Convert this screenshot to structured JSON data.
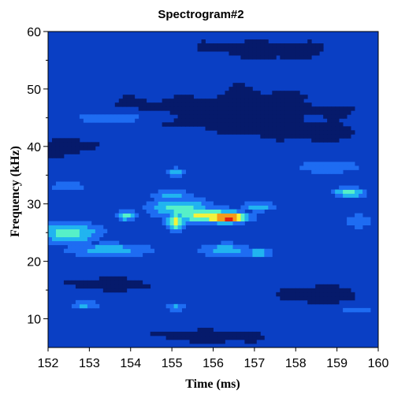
{
  "chart_data": {
    "type": "heatmap",
    "title": "Spectrogram#2",
    "xlabel": "Time (ms)",
    "ylabel": "Frequency (kHz)",
    "xlim": [
      152,
      160
    ],
    "ylim": [
      5,
      60
    ],
    "x_ticks": [
      "152",
      "153",
      "154",
      "155",
      "156",
      "157",
      "158",
      "159",
      "160"
    ],
    "y_ticks": [
      "10",
      "20",
      "30",
      "40",
      "50",
      "60"
    ],
    "x_tick_values": [
      152,
      153,
      154,
      155,
      156,
      157,
      158,
      159,
      160
    ],
    "y_tick_values": [
      10,
      20,
      30,
      40,
      50,
      60
    ],
    "colormap": [
      "#061a6b",
      "#0a3fc4",
      "#1e6cf2",
      "#21b4f0",
      "#56f0c8",
      "#f2f23c",
      "#f59a1a",
      "#e02010",
      "#8a0e08"
    ],
    "background_level_color": "#0a3fc4",
    "blobs": [
      {
        "time": 155.2,
        "freq": 29.3,
        "time_spread": 0.9,
        "freq_spread": 2.0,
        "level": 4
      },
      {
        "time": 155.8,
        "freq": 28.0,
        "time_spread": 0.9,
        "freq_spread": 1.6,
        "level": 5
      },
      {
        "time": 156.3,
        "freq": 27.7,
        "time_spread": 0.6,
        "freq_spread": 1.1,
        "level": 7
      },
      {
        "time": 156.4,
        "freq": 27.5,
        "time_spread": 0.25,
        "freq_spread": 0.5,
        "level": 8
      },
      {
        "time": 155.1,
        "freq": 27.0,
        "time_spread": 0.3,
        "freq_spread": 1.8,
        "level": 5
      },
      {
        "time": 152.5,
        "freq": 25.0,
        "time_spread": 0.9,
        "freq_spread": 2.2,
        "level": 4
      },
      {
        "time": 153.9,
        "freq": 28.0,
        "time_spread": 0.25,
        "freq_spread": 1.0,
        "level": 4
      },
      {
        "time": 155.1,
        "freq": 35.5,
        "time_spread": 0.3,
        "freq_spread": 1.0,
        "level": 3
      },
      {
        "time": 155.0,
        "freq": 31.5,
        "time_spread": 0.6,
        "freq_spread": 1.2,
        "level": 3
      },
      {
        "time": 159.3,
        "freq": 32.0,
        "time_spread": 0.45,
        "freq_spread": 1.0,
        "level": 4
      },
      {
        "time": 152.9,
        "freq": 12.5,
        "time_spread": 0.4,
        "freq_spread": 0.8,
        "level": 3
      },
      {
        "time": 155.1,
        "freq": 12.0,
        "time_spread": 0.25,
        "freq_spread": 0.8,
        "level": 3
      },
      {
        "time": 153.5,
        "freq": 22.0,
        "time_spread": 1.3,
        "freq_spread": 1.5,
        "level": 3
      },
      {
        "time": 156.3,
        "freq": 22.0,
        "time_spread": 0.8,
        "freq_spread": 1.5,
        "level": 3
      },
      {
        "time": 157.1,
        "freq": 21.5,
        "time_spread": 0.4,
        "freq_spread": 1.2,
        "level": 3
      },
      {
        "time": 157.1,
        "freq": 29.5,
        "time_spread": 0.5,
        "freq_spread": 1.0,
        "level": 3
      },
      {
        "time": 152.5,
        "freq": 33.0,
        "time_spread": 0.7,
        "freq_spread": 1.5,
        "level": 2
      },
      {
        "time": 153.2,
        "freq": 37.0,
        "time_spread": 1.1,
        "freq_spread": 1.2,
        "level": 1
      },
      {
        "time": 158.8,
        "freq": 36.5,
        "time_spread": 1.3,
        "freq_spread": 2.0,
        "level": 2
      },
      {
        "time": 159.5,
        "freq": 27.0,
        "time_spread": 0.6,
        "freq_spread": 2.0,
        "level": 2
      },
      {
        "time": 153.5,
        "freq": 45.0,
        "time_spread": 1.4,
        "freq_spread": 1.5,
        "level": 2
      },
      {
        "time": 152.5,
        "freq": 56.0,
        "time_spread": 1.3,
        "freq_spread": 2.0,
        "level": 1
      },
      {
        "time": 154.0,
        "freq": 52.0,
        "time_spread": 1.8,
        "freq_spread": 1.2,
        "level": 1
      },
      {
        "time": 159.0,
        "freq": 48.0,
        "time_spread": 1.0,
        "freq_spread": 1.2,
        "level": 1
      },
      {
        "time": 158.5,
        "freq": 52.0,
        "time_spread": 1.5,
        "freq_spread": 1.2,
        "level": 1
      },
      {
        "time": 157.5,
        "freq": 10.0,
        "time_spread": 1.2,
        "freq_spread": 1.0,
        "level": 1
      },
      {
        "time": 153.0,
        "freq": 6.5,
        "time_spread": 1.5,
        "freq_spread": 0.8,
        "level": 1
      },
      {
        "time": 156.5,
        "freq": 17.0,
        "time_spread": 1.5,
        "freq_spread": 1.2,
        "level": 1
      },
      {
        "time": 154.5,
        "freq": 42.0,
        "time_spread": 1.0,
        "freq_spread": 1.0,
        "level": 1
      },
      {
        "time": 159.5,
        "freq": 11.5,
        "time_spread": 0.6,
        "freq_spread": 1.0,
        "level": 2
      }
    ],
    "dark_patches": [
      {
        "time": 156.5,
        "freq": 46.0,
        "time_spread": 2.5,
        "freq_spread": 3.5
      },
      {
        "time": 158.5,
        "freq": 42.5,
        "time_spread": 1.2,
        "freq_spread": 1.2
      },
      {
        "time": 157.5,
        "freq": 57.0,
        "time_spread": 1.5,
        "freq_spread": 1.5
      },
      {
        "time": 153.5,
        "freq": 16.0,
        "time_spread": 1.0,
        "freq_spread": 1.0
      },
      {
        "time": 158.5,
        "freq": 14.0,
        "time_spread": 1.0,
        "freq_spread": 1.5
      },
      {
        "time": 152.5,
        "freq": 40.0,
        "time_spread": 0.8,
        "freq_spread": 1.5
      },
      {
        "time": 156.0,
        "freq": 7.0,
        "time_spread": 1.2,
        "freq_spread": 1.0
      }
    ],
    "grid": false,
    "legend": "none"
  }
}
